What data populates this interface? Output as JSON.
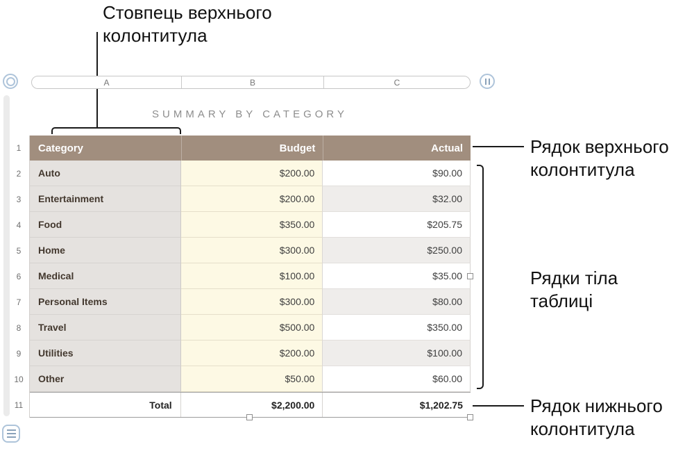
{
  "callouts": {
    "header_column": "Стовпець верхнього колонтитула",
    "header_row": "Рядок верхнього колонтитула",
    "body_rows": "Рядки тіла таблиці",
    "footer_row": "Рядок нижнього колонтитула"
  },
  "sheet": {
    "column_letters": [
      "A",
      "B",
      "C"
    ],
    "row_numbers": [
      "1",
      "2",
      "3",
      "4",
      "5",
      "6",
      "7",
      "8",
      "9",
      "10",
      "11"
    ],
    "table_title": "SUMMARY BY CATEGORY"
  },
  "table": {
    "headers": {
      "category": "Category",
      "budget": "Budget",
      "actual": "Actual"
    },
    "rows": [
      {
        "category": "Auto",
        "budget": "$200.00",
        "actual": "$90.00"
      },
      {
        "category": "Entertainment",
        "budget": "$200.00",
        "actual": "$32.00"
      },
      {
        "category": "Food",
        "budget": "$350.00",
        "actual": "$205.75"
      },
      {
        "category": "Home",
        "budget": "$300.00",
        "actual": "$250.00"
      },
      {
        "category": "Medical",
        "budget": "$100.00",
        "actual": "$35.00"
      },
      {
        "category": "Personal Items",
        "budget": "$300.00",
        "actual": "$80.00"
      },
      {
        "category": "Travel",
        "budget": "$500.00",
        "actual": "$350.00"
      },
      {
        "category": "Utilities",
        "budget": "$200.00",
        "actual": "$100.00"
      },
      {
        "category": "Other",
        "budget": "$50.00",
        "actual": "$60.00"
      }
    ],
    "footer": {
      "category": "Total",
      "budget": "$2,200.00",
      "actual": "$1,202.75"
    }
  },
  "colors": {
    "header_row_bg": "#a18e7e",
    "header_text": "#ffffff",
    "category_column_bg": "#e5e2df",
    "budget_column_bg": "#fdf9e4",
    "alternate_row_bg": "#efedeb",
    "callout_line": "#1a1a1a",
    "handle_ring": "#aec4da"
  }
}
